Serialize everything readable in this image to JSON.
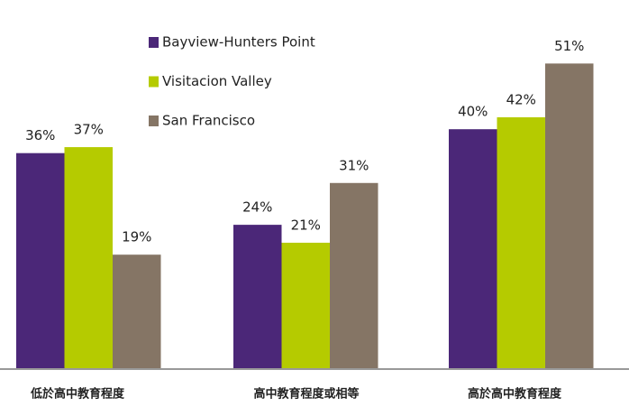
{
  "chart_data": {
    "type": "bar",
    "categories": [
      "低於高中教育程度",
      "高中教育程度或相等",
      "高於高中教育程度"
    ],
    "series": [
      {
        "name": "Bayview-Hunters Point",
        "color": "#4b2778",
        "values": [
          36,
          24,
          40
        ],
        "value_labels": [
          "36%",
          "24%",
          "40%"
        ]
      },
      {
        "name": "Visitacion Valley",
        "color": "#b5cb00",
        "values": [
          37,
          21,
          42
        ],
        "value_labels": [
          "37%",
          "21%",
          "42%"
        ]
      },
      {
        "name": "San Francisco",
        "color": "#857565",
        "values": [
          19,
          31,
          51
        ],
        "value_labels": [
          "19%",
          "31%",
          "51%"
        ]
      }
    ],
    "legend": "top"
  }
}
